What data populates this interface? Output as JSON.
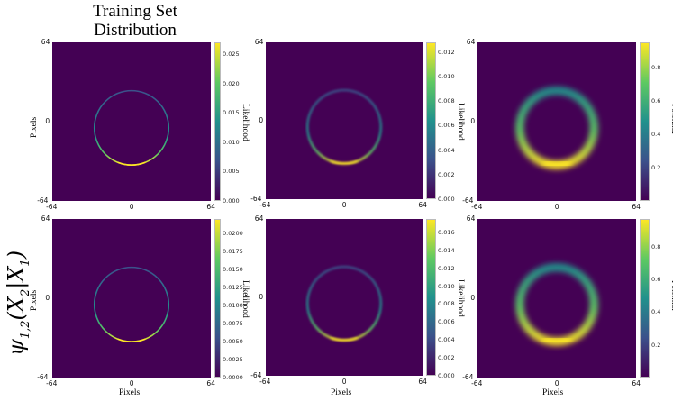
{
  "figure": {
    "column_title": "Training Set\nDistribution",
    "row_label": "ψ1,2(X2|X1)",
    "axis_label_pixels": "Pixels",
    "colorbar_labels": [
      "Likelihood",
      "Likelihood",
      "Potential",
      "Likelihood",
      "Likelihood",
      "Potential"
    ]
  },
  "chart_data": [
    {
      "type": "heatmap",
      "title": "",
      "xlabel": "",
      "ylabel": "Pixels",
      "xticks": [
        "-64",
        "0",
        "64"
      ],
      "yticks": [
        "64",
        "0",
        "-64"
      ],
      "xlim": [
        -64,
        64
      ],
      "ylim": [
        -64,
        64
      ],
      "colorbar_label": "Likelihood",
      "colorbar_ticks": [
        "0.000",
        "0.005",
        "0.010",
        "0.015",
        "0.020",
        "0.025"
      ],
      "colorbar_range": [
        0,
        0.027
      ],
      "colormap": "viridis",
      "content": "thin ring of radius ~30 px, brightest at bottom",
      "ring": {
        "cx": 0,
        "cy": -5,
        "r": 30
      }
    },
    {
      "type": "heatmap",
      "title": "",
      "xlabel": "",
      "ylabel": "",
      "xticks": [
        "-64",
        "0",
        "64"
      ],
      "yticks": [
        "64",
        "0",
        "-64"
      ],
      "xlim": [
        -64,
        64
      ],
      "ylim": [
        -64,
        64
      ],
      "colorbar_label": "Likelihood",
      "colorbar_ticks": [
        "0.000",
        "0.002",
        "0.004",
        "0.006",
        "0.008",
        "0.010",
        "0.012"
      ],
      "colorbar_range": [
        0,
        0.0128
      ],
      "colormap": "viridis",
      "content": "blurred ring, brightest at bottom",
      "ring": {
        "cx": 0,
        "cy": -5,
        "r": 30
      }
    },
    {
      "type": "heatmap",
      "title": "",
      "xlabel": "",
      "ylabel": "",
      "xticks": [
        "-64",
        "0",
        "64"
      ],
      "yticks": [
        "64",
        "0",
        "-64"
      ],
      "xlim": [
        -64,
        64
      ],
      "ylim": [
        -64,
        64
      ],
      "colorbar_label": "Potential",
      "colorbar_ticks": [
        "0.2",
        "0.4",
        "0.6",
        "0.8"
      ],
      "colorbar_range": [
        0,
        0.95
      ],
      "colormap": "viridis",
      "content": "thick smooth ring, brightest at bottom",
      "ring": {
        "cx": 0,
        "cy": -5,
        "r": 30
      }
    },
    {
      "type": "heatmap",
      "title": "",
      "xlabel": "Pixels",
      "ylabel": "Pixels",
      "xticks": [
        "-64",
        "0",
        "64"
      ],
      "yticks": [
        "64",
        "0",
        "-64"
      ],
      "xlim": [
        -64,
        64
      ],
      "ylim": [
        -64,
        64
      ],
      "colorbar_label": "Likelihood",
      "colorbar_ticks": [
        "0.0000",
        "0.0025",
        "0.0050",
        "0.0075",
        "0.0100",
        "0.0125",
        "0.0150",
        "0.0175",
        "0.0200"
      ],
      "colorbar_range": [
        0,
        0.022
      ],
      "colormap": "viridis",
      "content": "thin ring of radius ~30 px, brightest at bottom",
      "ring": {
        "cx": 0,
        "cy": -5,
        "r": 30
      }
    },
    {
      "type": "heatmap",
      "title": "",
      "xlabel": "Pixels",
      "ylabel": "",
      "xticks": [
        "-64",
        "0",
        "64"
      ],
      "yticks": [
        "64",
        "0",
        "-64"
      ],
      "xlim": [
        -64,
        64
      ],
      "ylim": [
        -64,
        64
      ],
      "colorbar_label": "Likelihood",
      "colorbar_ticks": [
        "0.000",
        "0.002",
        "0.004",
        "0.006",
        "0.008",
        "0.010",
        "0.012",
        "0.014",
        "0.016"
      ],
      "colorbar_range": [
        0,
        0.0175
      ],
      "colormap": "viridis",
      "content": "blurred ring, brightest at bottom",
      "ring": {
        "cx": 0,
        "cy": -5,
        "r": 30
      }
    },
    {
      "type": "heatmap",
      "title": "",
      "xlabel": "Pixels",
      "ylabel": "",
      "xticks": [
        "-64",
        "0",
        "64"
      ],
      "yticks": [
        "64",
        "0",
        "-64"
      ],
      "xlim": [
        -64,
        64
      ],
      "ylim": [
        -64,
        64
      ],
      "colorbar_label": "Potential",
      "colorbar_ticks": [
        "0.2",
        "0.4",
        "0.6",
        "0.8"
      ],
      "colorbar_range": [
        0,
        0.97
      ],
      "colormap": "viridis",
      "content": "thick smooth ring, brightest at bottom",
      "ring": {
        "cx": 0,
        "cy": -5,
        "r": 30
      }
    }
  ],
  "colors": {
    "viridis_low": "#440154",
    "viridis_mid_low": "#3b528b",
    "viridis_mid": "#21918c",
    "viridis_mid_high": "#5ec962",
    "viridis_high": "#fde725"
  }
}
